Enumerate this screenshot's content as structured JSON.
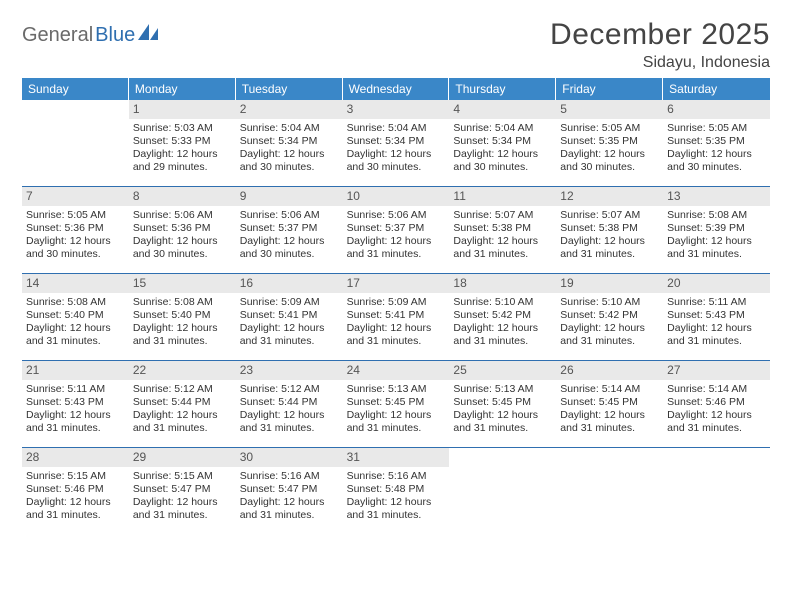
{
  "logo": {
    "text1": "General",
    "text2": "Blue"
  },
  "title": "December 2025",
  "location": "Sidayu, Indonesia",
  "colors": {
    "header_bar": "#3a87c8",
    "week_divider": "#2f6fb0",
    "daynum_bg": "#e9e9e9",
    "text": "#333333",
    "logo_gray": "#6a6a6a",
    "logo_blue": "#2f6fb0",
    "background": "#ffffff"
  },
  "dow": [
    "Sunday",
    "Monday",
    "Tuesday",
    "Wednesday",
    "Thursday",
    "Friday",
    "Saturday"
  ],
  "weeks": [
    [
      {
        "n": "",
        "empty": true,
        "sr": "",
        "ss": "",
        "dl": ""
      },
      {
        "n": "1",
        "sr": "Sunrise: 5:03 AM",
        "ss": "Sunset: 5:33 PM",
        "dl": "Daylight: 12 hours and 29 minutes."
      },
      {
        "n": "2",
        "sr": "Sunrise: 5:04 AM",
        "ss": "Sunset: 5:34 PM",
        "dl": "Daylight: 12 hours and 30 minutes."
      },
      {
        "n": "3",
        "sr": "Sunrise: 5:04 AM",
        "ss": "Sunset: 5:34 PM",
        "dl": "Daylight: 12 hours and 30 minutes."
      },
      {
        "n": "4",
        "sr": "Sunrise: 5:04 AM",
        "ss": "Sunset: 5:34 PM",
        "dl": "Daylight: 12 hours and 30 minutes."
      },
      {
        "n": "5",
        "sr": "Sunrise: 5:05 AM",
        "ss": "Sunset: 5:35 PM",
        "dl": "Daylight: 12 hours and 30 minutes."
      },
      {
        "n": "6",
        "sr": "Sunrise: 5:05 AM",
        "ss": "Sunset: 5:35 PM",
        "dl": "Daylight: 12 hours and 30 minutes."
      }
    ],
    [
      {
        "n": "7",
        "sr": "Sunrise: 5:05 AM",
        "ss": "Sunset: 5:36 PM",
        "dl": "Daylight: 12 hours and 30 minutes."
      },
      {
        "n": "8",
        "sr": "Sunrise: 5:06 AM",
        "ss": "Sunset: 5:36 PM",
        "dl": "Daylight: 12 hours and 30 minutes."
      },
      {
        "n": "9",
        "sr": "Sunrise: 5:06 AM",
        "ss": "Sunset: 5:37 PM",
        "dl": "Daylight: 12 hours and 30 minutes."
      },
      {
        "n": "10",
        "sr": "Sunrise: 5:06 AM",
        "ss": "Sunset: 5:37 PM",
        "dl": "Daylight: 12 hours and 31 minutes."
      },
      {
        "n": "11",
        "sr": "Sunrise: 5:07 AM",
        "ss": "Sunset: 5:38 PM",
        "dl": "Daylight: 12 hours and 31 minutes."
      },
      {
        "n": "12",
        "sr": "Sunrise: 5:07 AM",
        "ss": "Sunset: 5:38 PM",
        "dl": "Daylight: 12 hours and 31 minutes."
      },
      {
        "n": "13",
        "sr": "Sunrise: 5:08 AM",
        "ss": "Sunset: 5:39 PM",
        "dl": "Daylight: 12 hours and 31 minutes."
      }
    ],
    [
      {
        "n": "14",
        "sr": "Sunrise: 5:08 AM",
        "ss": "Sunset: 5:40 PM",
        "dl": "Daylight: 12 hours and 31 minutes."
      },
      {
        "n": "15",
        "sr": "Sunrise: 5:08 AM",
        "ss": "Sunset: 5:40 PM",
        "dl": "Daylight: 12 hours and 31 minutes."
      },
      {
        "n": "16",
        "sr": "Sunrise: 5:09 AM",
        "ss": "Sunset: 5:41 PM",
        "dl": "Daylight: 12 hours and 31 minutes."
      },
      {
        "n": "17",
        "sr": "Sunrise: 5:09 AM",
        "ss": "Sunset: 5:41 PM",
        "dl": "Daylight: 12 hours and 31 minutes."
      },
      {
        "n": "18",
        "sr": "Sunrise: 5:10 AM",
        "ss": "Sunset: 5:42 PM",
        "dl": "Daylight: 12 hours and 31 minutes."
      },
      {
        "n": "19",
        "sr": "Sunrise: 5:10 AM",
        "ss": "Sunset: 5:42 PM",
        "dl": "Daylight: 12 hours and 31 minutes."
      },
      {
        "n": "20",
        "sr": "Sunrise: 5:11 AM",
        "ss": "Sunset: 5:43 PM",
        "dl": "Daylight: 12 hours and 31 minutes."
      }
    ],
    [
      {
        "n": "21",
        "sr": "Sunrise: 5:11 AM",
        "ss": "Sunset: 5:43 PM",
        "dl": "Daylight: 12 hours and 31 minutes."
      },
      {
        "n": "22",
        "sr": "Sunrise: 5:12 AM",
        "ss": "Sunset: 5:44 PM",
        "dl": "Daylight: 12 hours and 31 minutes."
      },
      {
        "n": "23",
        "sr": "Sunrise: 5:12 AM",
        "ss": "Sunset: 5:44 PM",
        "dl": "Daylight: 12 hours and 31 minutes."
      },
      {
        "n": "24",
        "sr": "Sunrise: 5:13 AM",
        "ss": "Sunset: 5:45 PM",
        "dl": "Daylight: 12 hours and 31 minutes."
      },
      {
        "n": "25",
        "sr": "Sunrise: 5:13 AM",
        "ss": "Sunset: 5:45 PM",
        "dl": "Daylight: 12 hours and 31 minutes."
      },
      {
        "n": "26",
        "sr": "Sunrise: 5:14 AM",
        "ss": "Sunset: 5:45 PM",
        "dl": "Daylight: 12 hours and 31 minutes."
      },
      {
        "n": "27",
        "sr": "Sunrise: 5:14 AM",
        "ss": "Sunset: 5:46 PM",
        "dl": "Daylight: 12 hours and 31 minutes."
      }
    ],
    [
      {
        "n": "28",
        "sr": "Sunrise: 5:15 AM",
        "ss": "Sunset: 5:46 PM",
        "dl": "Daylight: 12 hours and 31 minutes."
      },
      {
        "n": "29",
        "sr": "Sunrise: 5:15 AM",
        "ss": "Sunset: 5:47 PM",
        "dl": "Daylight: 12 hours and 31 minutes."
      },
      {
        "n": "30",
        "sr": "Sunrise: 5:16 AM",
        "ss": "Sunset: 5:47 PM",
        "dl": "Daylight: 12 hours and 31 minutes."
      },
      {
        "n": "31",
        "sr": "Sunrise: 5:16 AM",
        "ss": "Sunset: 5:48 PM",
        "dl": "Daylight: 12 hours and 31 minutes."
      },
      {
        "n": "",
        "empty": true,
        "sr": "",
        "ss": "",
        "dl": ""
      },
      {
        "n": "",
        "empty": true,
        "sr": "",
        "ss": "",
        "dl": ""
      },
      {
        "n": "",
        "empty": true,
        "sr": "",
        "ss": "",
        "dl": ""
      }
    ]
  ]
}
